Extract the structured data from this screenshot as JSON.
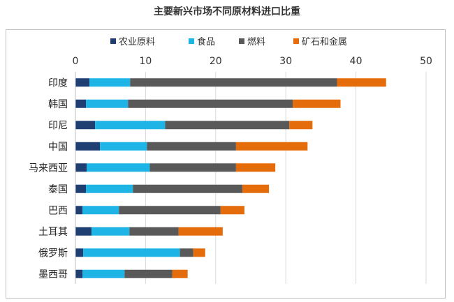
{
  "chart_data": {
    "type": "bar",
    "orientation": "horizontal",
    "stacked": true,
    "title": "主要新兴市场不同原材料进口比重",
    "categories": [
      "印度",
      "韩国",
      "印尼",
      "中国",
      "马来西亚",
      "泰国",
      "巴西",
      "土耳其",
      "俄罗斯",
      "墨西哥"
    ],
    "series": [
      {
        "name": "农业原料",
        "color": "#1f3f73",
        "values": [
          2.0,
          1.5,
          2.8,
          3.5,
          1.6,
          1.5,
          1.0,
          2.3,
          1.1,
          1.0
        ]
      },
      {
        "name": "食品",
        "color": "#1fb4e6",
        "values": [
          5.8,
          6.0,
          10.0,
          6.7,
          9.0,
          6.7,
          5.2,
          5.4,
          13.8,
          6.0
        ]
      },
      {
        "name": "燃料",
        "color": "#595959",
        "values": [
          29.5,
          23.5,
          17.7,
          12.7,
          12.3,
          15.6,
          14.5,
          7.0,
          1.9,
          6.8
        ]
      },
      {
        "name": "矿石和金属",
        "color": "#e46c0a",
        "values": [
          7.0,
          6.8,
          3.3,
          10.2,
          5.6,
          3.8,
          3.4,
          6.3,
          1.7,
          2.2
        ]
      }
    ],
    "xlim": [
      0,
      50
    ],
    "xticks": [
      "0",
      "10",
      "20",
      "30",
      "40",
      "50"
    ],
    "xaxis_position": "top",
    "legend_position": "top",
    "grid": true
  }
}
